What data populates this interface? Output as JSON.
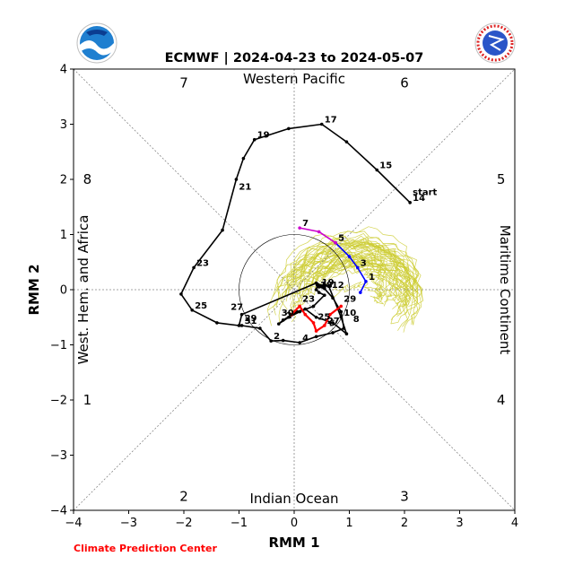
{
  "chart_data": {
    "type": "line",
    "title": "ECMWF | 2024-04-23 to 2024-05-07",
    "xlabel": "RMM 1",
    "ylabel": "RMM 2",
    "xlim": [
      -4,
      4
    ],
    "ylim": [
      -4,
      4
    ],
    "xticks": [
      "−4",
      "−3",
      "−2",
      "−1",
      "0",
      "1",
      "2",
      "3",
      "4"
    ],
    "yticks": [
      "−4",
      "−3",
      "−2",
      "−1",
      "0",
      "1",
      "2",
      "3",
      "4"
    ],
    "phases": [
      {
        "label": "1",
        "pos": [
          -3.75,
          -2
        ]
      },
      {
        "label": "2",
        "pos": [
          -2,
          -3.75
        ]
      },
      {
        "label": "3",
        "pos": [
          2,
          -3.75
        ]
      },
      {
        "label": "4",
        "pos": [
          3.75,
          -2
        ]
      },
      {
        "label": "5",
        "pos": [
          3.75,
          2
        ]
      },
      {
        "label": "6",
        "pos": [
          2,
          3.75
        ]
      },
      {
        "label": "7",
        "pos": [
          -2,
          3.75
        ]
      },
      {
        "label": "8",
        "pos": [
          -3.75,
          2
        ]
      }
    ],
    "regions": {
      "top": "Western Pacific",
      "bottom": "Indian Ocean",
      "left": "West. Hem. and Africa",
      "right": "Maritime Continent"
    },
    "unit_circle_radius": 1,
    "series": [
      {
        "color": "#000000",
        "points": [
          [
            -0.95,
            -0.65
          ],
          [
            -0.62,
            -0.7
          ],
          [
            -0.42,
            -0.93
          ],
          [
            -0.2,
            -0.92
          ],
          [
            0.1,
            -0.96
          ],
          [
            0.4,
            -0.85
          ],
          [
            0.7,
            -0.78
          ],
          [
            0.9,
            -0.7
          ],
          [
            0.85,
            -0.4
          ],
          [
            0.7,
            -0.15
          ],
          [
            0.55,
            0.02
          ],
          [
            0.45,
            0.05
          ],
          [
            0.42,
            0.1
          ],
          [
            0.63,
            0.06
          ],
          [
            0.85,
            -0.5
          ],
          [
            0.95,
            -0.8
          ],
          [
            0.7,
            -0.6
          ],
          [
            0.4,
            -0.5
          ],
          [
            0.2,
            -0.35
          ],
          [
            0.05,
            -0.4
          ],
          [
            -0.2,
            -0.55
          ],
          [
            -0.28,
            -0.62
          ],
          [
            -0.1,
            -0.5
          ],
          [
            0.1,
            -0.4
          ],
          [
            0.35,
            -0.3
          ],
          [
            0.55,
            -0.1
          ],
          [
            0.45,
            -0.05
          ],
          [
            0.4,
            0.0
          ],
          [
            0.42,
            0.08
          ],
          [
            0.55,
            0.05
          ],
          [
            0.4,
            0.12
          ],
          [
            -0.95,
            -0.45
          ],
          [
            -1.0,
            -0.65
          ],
          [
            -1.4,
            -0.6
          ],
          [
            -1.85,
            -0.37
          ],
          [
            -2.05,
            -0.08
          ],
          [
            -1.82,
            0.4
          ],
          [
            -1.3,
            1.08
          ],
          [
            -1.05,
            2.0
          ],
          [
            -0.92,
            2.38
          ],
          [
            -0.72,
            2.72
          ],
          [
            -0.1,
            2.92
          ],
          [
            0.5,
            3.0
          ],
          [
            0.95,
            2.68
          ],
          [
            1.5,
            2.17
          ],
          [
            2.1,
            1.58
          ]
        ],
        "labels": [
          {
            "text": "2",
            "at": [
              -0.42,
              -0.93
            ]
          },
          {
            "text": "4",
            "at": [
              0.1,
              -0.96
            ]
          },
          {
            "text": "6",
            "at": [
              0.58,
              -0.69
            ]
          },
          {
            "text": "8",
            "at": [
              1.02,
              -0.62
            ]
          },
          {
            "text": "10",
            "at": [
              0.85,
              -0.5
            ]
          },
          {
            "text": "12",
            "at": [
              0.63,
              0.0
            ]
          },
          {
            "text": "14",
            "at": [
              2.1,
              1.58
            ]
          },
          {
            "text": "15",
            "at": [
              1.5,
              2.17
            ]
          },
          {
            "text": "17",
            "at": [
              0.5,
              3.0
            ]
          },
          {
            "text": "19",
            "at": [
              -0.72,
              2.72
            ]
          },
          {
            "text": "21",
            "at": [
              -1.05,
              1.78
            ]
          },
          {
            "text": "23",
            "at": [
              -1.82,
              0.4
            ]
          },
          {
            "text": "25",
            "at": [
              -1.85,
              -0.37
            ]
          },
          {
            "text": "27",
            "at": [
              -1.2,
              -0.4
            ]
          },
          {
            "text": "29",
            "at": [
              -0.95,
              -0.6
            ]
          },
          {
            "text": "31",
            "at": [
              -0.95,
              -0.65
            ]
          },
          {
            "text": "2",
            "at": [
              -0.2,
              -0.55
            ]
          },
          {
            "text": "30",
            "at": [
              -0.28,
              -0.5
            ]
          },
          {
            "text": "23",
            "at": [
              0.1,
              -0.25
            ]
          },
          {
            "text": "25",
            "at": [
              0.38,
              -0.58
            ]
          },
          {
            "text": "27",
            "at": [
              0.55,
              -0.65
            ]
          },
          {
            "text": "29",
            "at": [
              0.85,
              -0.25
            ]
          },
          {
            "text": "19",
            "at": [
              0.45,
              0.05
            ]
          },
          {
            "text": "18",
            "at": [
              0.42,
              0.0
            ]
          },
          {
            "text": "start",
            "at": [
              2.1,
              1.68
            ]
          }
        ]
      },
      {
        "color": "#0000ff",
        "points": [
          [
            1.2,
            -0.05
          ],
          [
            1.3,
            0.15
          ],
          [
            1.15,
            0.4
          ],
          [
            1.0,
            0.6
          ],
          [
            0.75,
            0.85
          ]
        ],
        "labels": [
          {
            "text": "1",
            "at": [
              1.3,
              0.15
            ]
          },
          {
            "text": "3",
            "at": [
              1.15,
              0.4
            ]
          }
        ]
      },
      {
        "color": "#cc00cc",
        "points": [
          [
            0.75,
            0.85
          ],
          [
            0.45,
            1.05
          ],
          [
            0.1,
            1.12
          ]
        ],
        "labels": [
          {
            "text": "5",
            "at": [
              0.75,
              0.85
            ]
          },
          {
            "text": "7",
            "at": [
              0.1,
              1.12
            ]
          }
        ]
      },
      {
        "color": "#ff0000",
        "points": [
          [
            0.85,
            -0.3
          ],
          [
            0.65,
            -0.45
          ],
          [
            0.55,
            -0.65
          ],
          [
            0.4,
            -0.75
          ],
          [
            0.35,
            -0.6
          ],
          [
            0.2,
            -0.45
          ],
          [
            0.1,
            -0.3
          ],
          [
            -0.05,
            -0.45
          ]
        ],
        "labels": []
      }
    ],
    "ensemble_color": "#cccc33"
  },
  "credit": "Climate Prediction Center"
}
